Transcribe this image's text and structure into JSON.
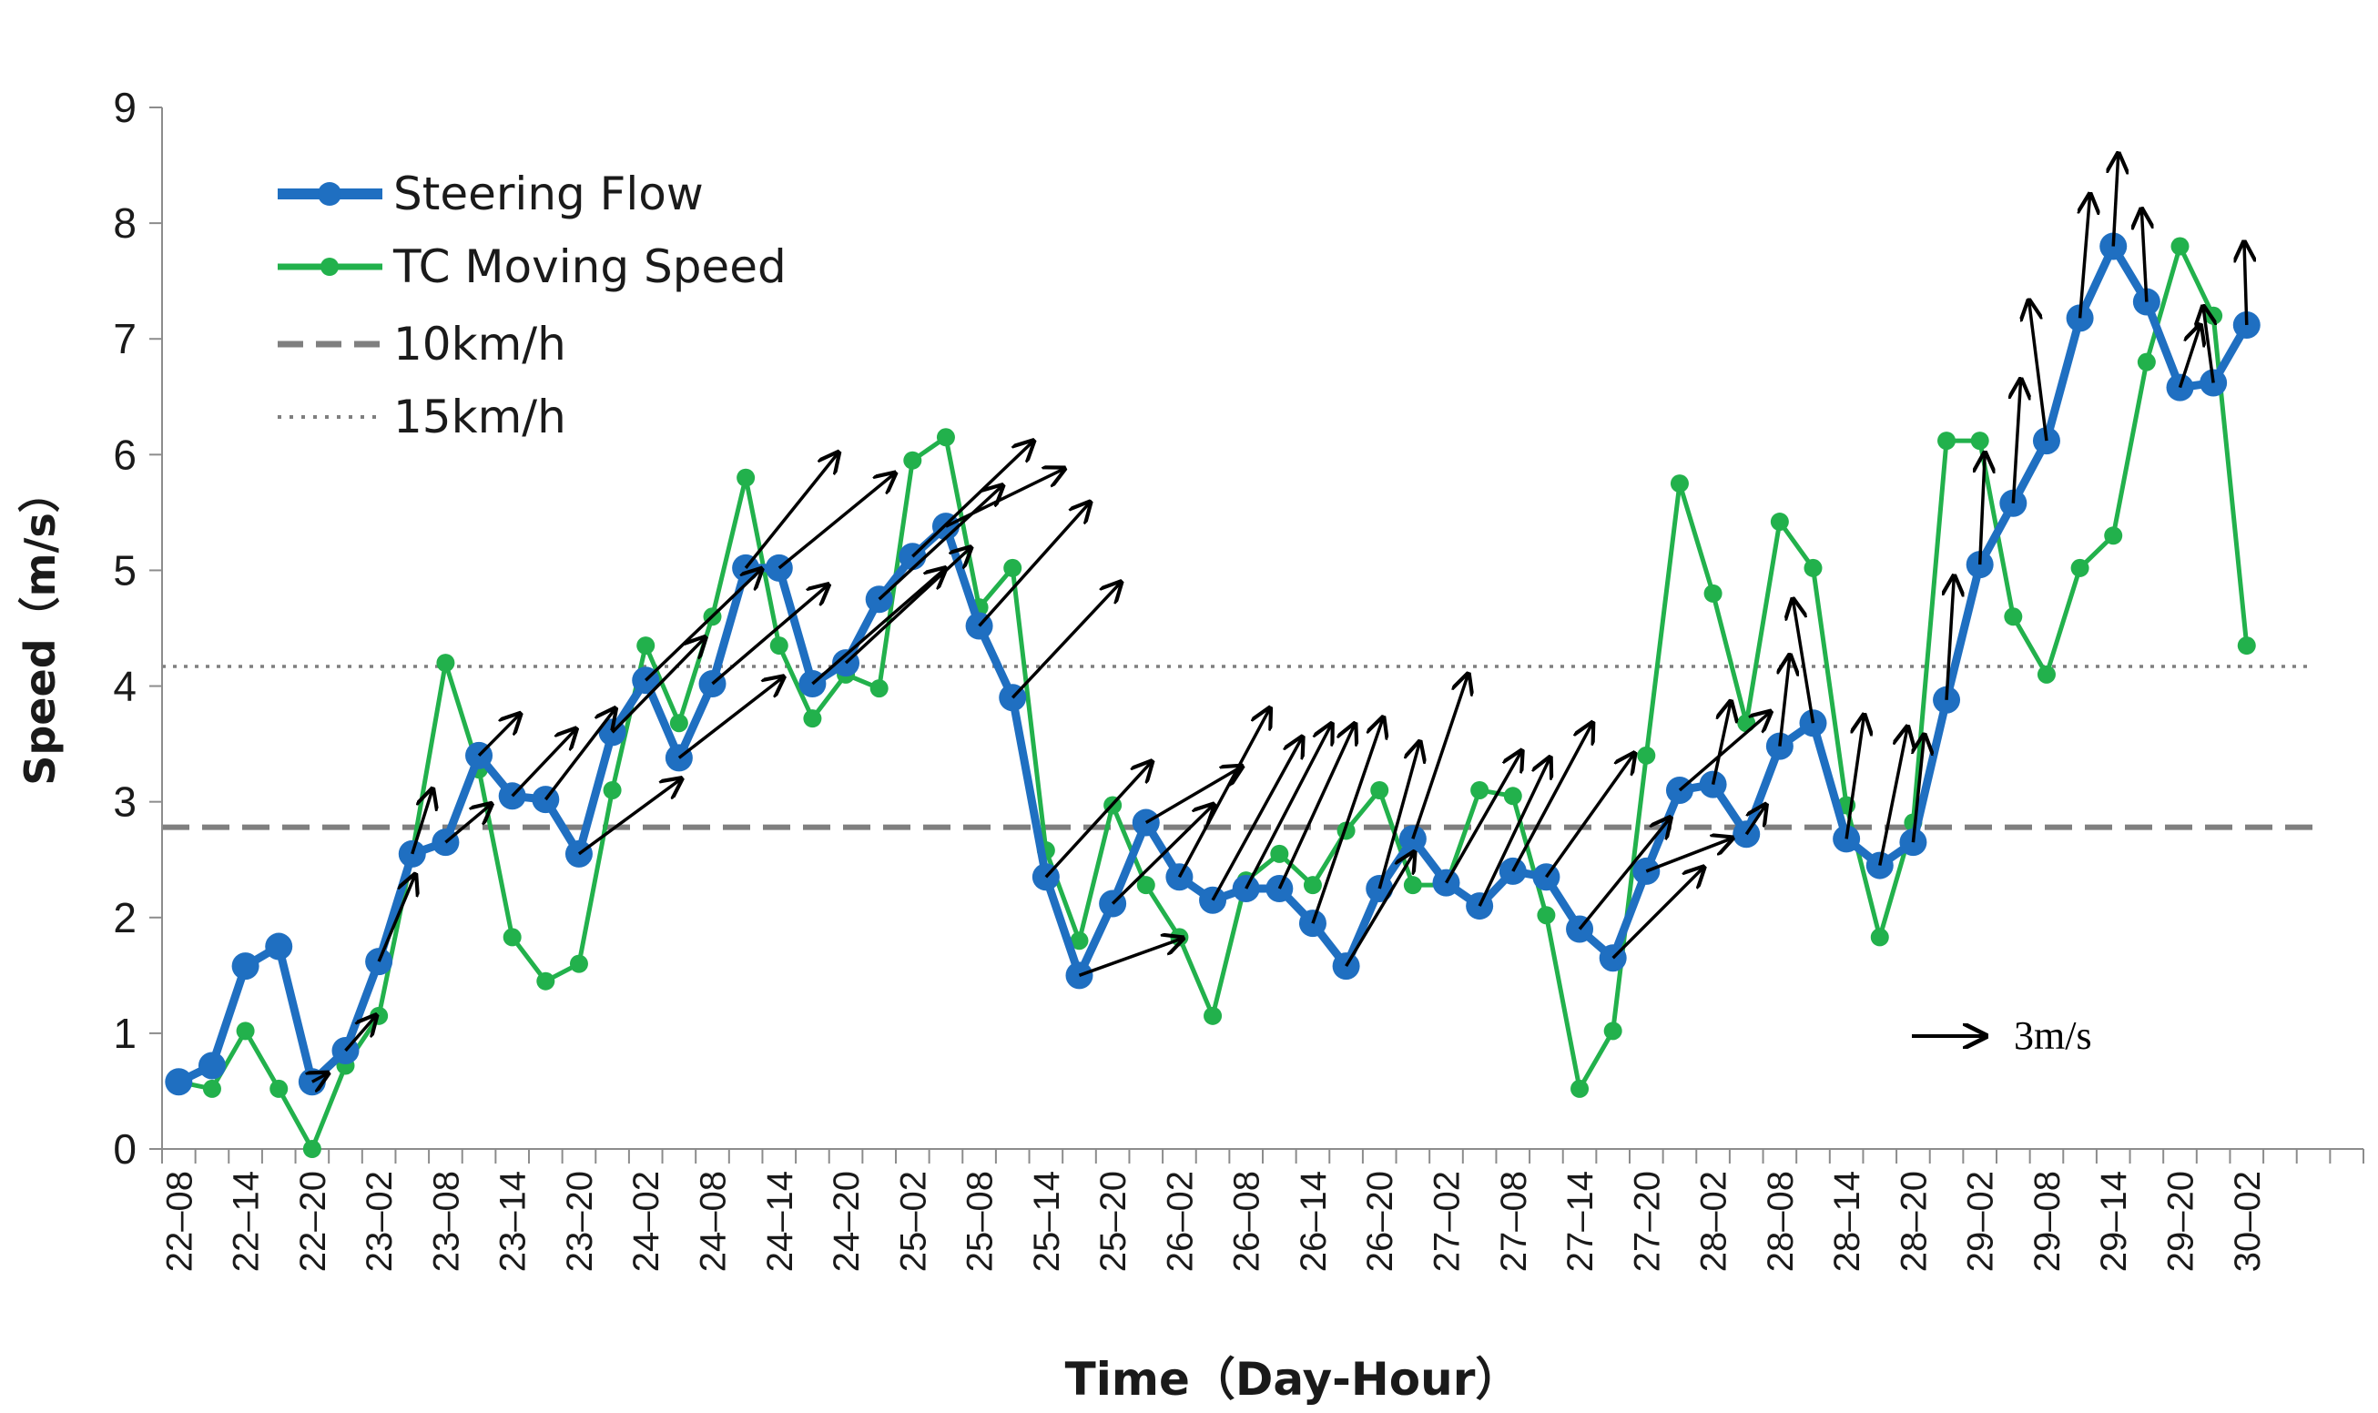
{
  "chart_data": {
    "type": "line",
    "xlabel": "Time（Day-Hour）",
    "ylabel": "Speed（m/s）",
    "ylim": [
      0,
      9
    ],
    "yticks": [
      "0",
      "1",
      "2",
      "3",
      "4",
      "5",
      "6",
      "7",
      "8",
      "9"
    ],
    "grid": false,
    "legend_position": "top-left",
    "x_tick_labels": [
      "22–08",
      "22–14",
      "22–20",
      "23–02",
      "23–08",
      "23–14",
      "23–20",
      "24–02",
      "24–08",
      "24–14",
      "24–20",
      "25–02",
      "25–08",
      "25–14",
      "25–20",
      "26–02",
      "26–08",
      "26–14",
      "26–20",
      "27–02",
      "27–08",
      "27–14",
      "27–20",
      "28–02",
      "28–08",
      "28–14",
      "28–20",
      "29–02",
      "29–08",
      "29–14",
      "29–20",
      "30–02"
    ],
    "series": [
      {
        "name": "Steering Flow",
        "color": "#1f6fc1",
        "values": [
          0.58,
          0.72,
          1.58,
          1.75,
          0.58,
          0.85,
          1.62,
          2.55,
          2.65,
          3.4,
          3.05,
          3.02,
          2.55,
          3.6,
          4.05,
          3.38,
          4.02,
          5.02,
          5.02,
          4.02,
          4.2,
          4.75,
          5.12,
          5.38,
          4.52,
          3.9,
          2.35,
          1.5,
          2.12,
          2.82,
          2.35,
          2.15,
          2.25,
          2.25,
          1.95,
          1.58,
          2.25,
          2.68,
          2.3,
          2.1,
          2.4,
          2.35,
          1.9,
          1.65,
          2.4,
          3.1,
          3.15,
          2.72,
          3.48,
          3.68,
          2.68,
          2.45,
          2.65,
          3.88,
          5.05,
          5.58,
          6.12,
          7.18,
          7.8,
          7.32,
          6.58,
          6.62,
          7.12
        ]
      },
      {
        "name": "TC Moving Speed",
        "color": "#22b14c",
        "values": [
          0.58,
          0.52,
          1.02,
          0.52,
          0.0,
          0.72,
          1.15,
          2.55,
          4.2,
          3.28,
          1.83,
          1.45,
          1.6,
          3.1,
          4.35,
          3.68,
          4.6,
          5.8,
          4.35,
          3.72,
          4.1,
          3.98,
          5.95,
          6.15,
          4.68,
          5.02,
          2.58,
          1.8,
          2.97,
          2.28,
          1.83,
          1.15,
          2.32,
          2.55,
          2.28,
          2.75,
          3.1,
          2.28,
          2.28,
          3.1,
          3.05,
          2.02,
          0.52,
          1.02,
          3.4,
          5.75,
          4.8,
          3.68,
          5.42,
          5.02,
          2.97,
          1.83,
          2.82,
          6.12,
          6.12,
          4.6,
          4.1,
          5.02,
          5.3,
          6.8,
          7.8,
          7.2,
          4.35
        ]
      },
      {
        "name": "10km/h",
        "color": "#7f7f7f",
        "value": 2.78
      },
      {
        "name": "15km/h",
        "color": "#7f7f7f",
        "value": 4.17
      }
    ],
    "arrows": {
      "color": "#000000",
      "scale_label": "3m/s",
      "scale_speed": 3,
      "vectors": [
        [
          -30,
          -10
        ],
        [
          -60,
          -42
        ],
        [
          -72,
          -105
        ],
        [
          -40,
          -78
        ],
        [
          -90,
          -46
        ],
        [
          -81,
          -50
        ],
        [
          -126,
          -81
        ],
        [
          -138,
          -110
        ],
        [
          -203,
          -91
        ],
        [
          -184,
          -115
        ],
        [
          -230,
          -135
        ],
        [
          -207,
          -98
        ],
        [
          -230,
          -120
        ],
        [
          -184,
          -140
        ],
        [
          -230,
          -115
        ],
        [
          -264,
          -140
        ],
        [
          -248,
          -140
        ],
        [
          -245,
          -138
        ],
        [
          -240,
          -140
        ],
        [
          -235,
          -70
        ],
        [
          -220,
          -150
        ],
        [
          -215,
          -140
        ],
        [
          -210,
          -140
        ],
        [
          -205,
          -45
        ],
        [
          -200,
          -120
        ],
        [
          -190,
          -68
        ],
        [
          -180,
          -205
        ],
        [
          -178,
          -198
        ],
        [
          -170,
          -200
        ],
        [
          -150,
          -200
        ],
        [
          -140,
          -250
        ],
        [
          -135,
          -138
        ],
        [
          -80,
          -178
        ],
        [
          -110,
          -200
        ],
        [
          -150,
          -160
        ],
        [
          -140,
          -180
        ],
        [
          -158,
          -180
        ],
        [
          -175,
          -150
        ],
        [
          -180,
          -135
        ],
        [
          -180,
          -110
        ],
        [
          -170,
          -40
        ],
        [
          -180,
          -95
        ],
        [
          -35,
          -100
        ],
        [
          -38,
          -35
        ],
        [
          -20,
          -110
        ],
        [
          40,
          -150
        ],
        [
          -35,
          -150
        ],
        [
          -55,
          -168
        ],
        [
          -22,
          -130
        ],
        [
          -15,
          -150
        ],
        [
          -10,
          -135
        ],
        [
          -15,
          -150
        ],
        [
          35,
          -170
        ],
        [
          -20,
          -150
        ],
        [
          -10,
          -112
        ],
        [
          10,
          -112
        ],
        [
          -40,
          -75
        ],
        [
          20,
          -92
        ],
        [
          5,
          -100
        ]
      ]
    }
  }
}
